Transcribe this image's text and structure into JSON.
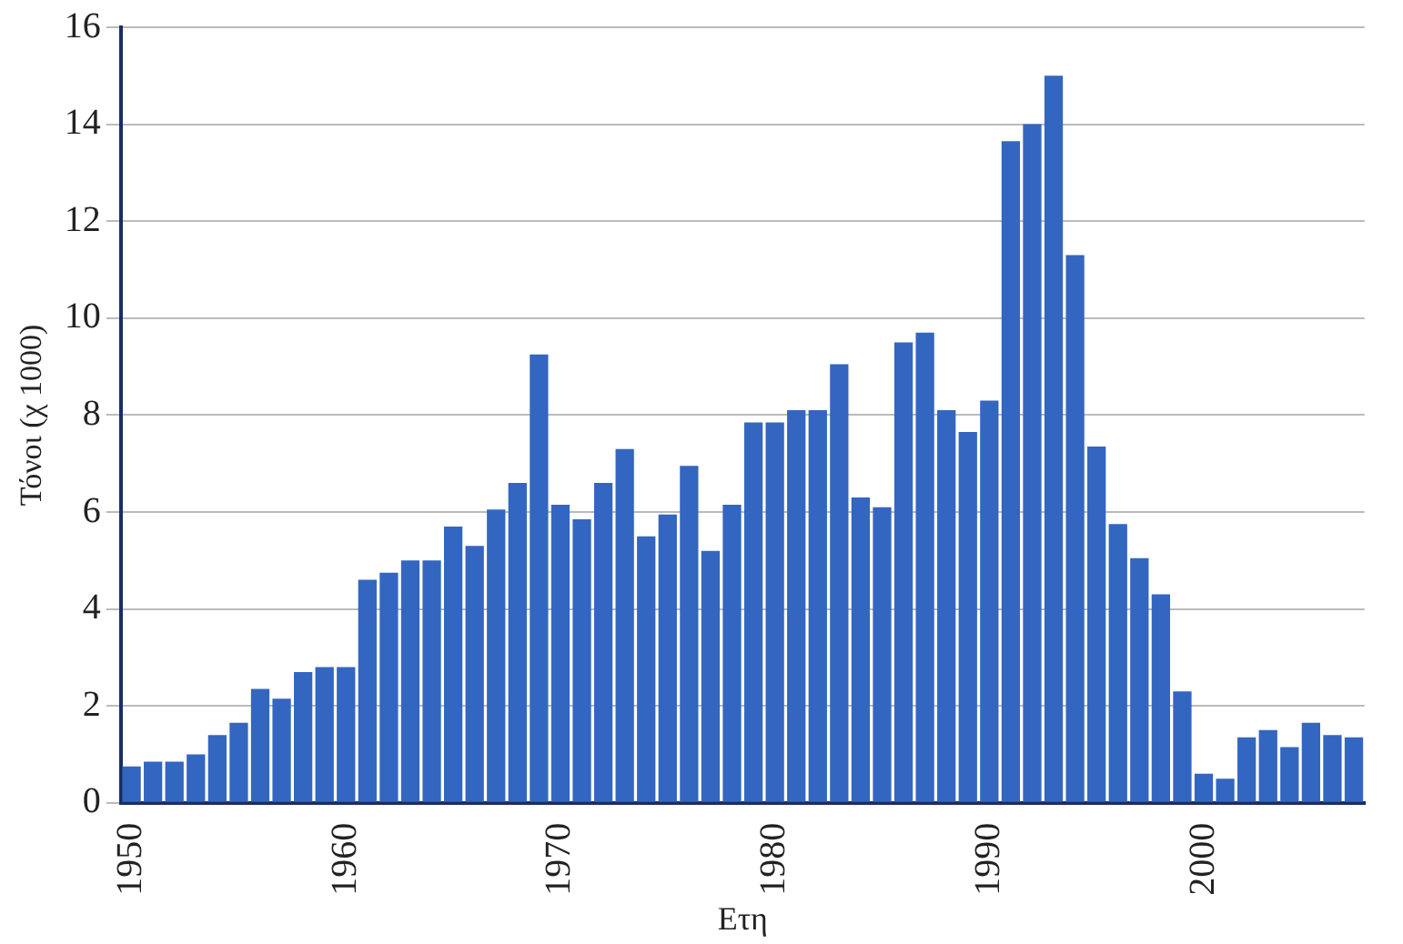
{
  "chart_data": {
    "type": "bar",
    "xlabel": "Ετη",
    "ylabel": "Τόνοι (χ 1000)",
    "categories": [
      "1950",
      null,
      null,
      null,
      null,
      null,
      null,
      null,
      null,
      null,
      "1960",
      null,
      null,
      null,
      null,
      null,
      null,
      null,
      null,
      null,
      "1970",
      null,
      null,
      null,
      null,
      null,
      null,
      null,
      null,
      null,
      "1980",
      null,
      null,
      null,
      null,
      null,
      null,
      null,
      null,
      null,
      "1990",
      null,
      null,
      null,
      null,
      null,
      null,
      null,
      null,
      null,
      "2000",
      null,
      null,
      null,
      null,
      null,
      null,
      null
    ],
    "values": [
      0.75,
      0.85,
      0.85,
      1.0,
      1.4,
      1.65,
      2.35,
      2.15,
      2.7,
      2.8,
      2.8,
      4.6,
      4.75,
      5.0,
      5.0,
      5.7,
      5.3,
      6.05,
      6.6,
      9.25,
      6.15,
      5.85,
      6.6,
      7.3,
      5.5,
      5.95,
      6.95,
      5.2,
      6.15,
      7.85,
      7.85,
      8.1,
      8.1,
      9.05,
      6.3,
      6.1,
      9.5,
      9.7,
      8.1,
      7.65,
      8.3,
      13.65,
      14.0,
      15.0,
      11.3,
      7.35,
      5.75,
      5.05,
      4.3,
      2.3,
      0.6,
      0.5,
      1.35,
      1.5,
      1.15,
      1.65,
      1.4,
      1.35
    ],
    "color": "#3366c0",
    "ylim": [
      0,
      16
    ],
    "yticks": [
      0,
      2,
      4,
      6,
      8,
      10,
      12,
      14,
      16
    ],
    "grid": "y",
    "legend": false
  }
}
